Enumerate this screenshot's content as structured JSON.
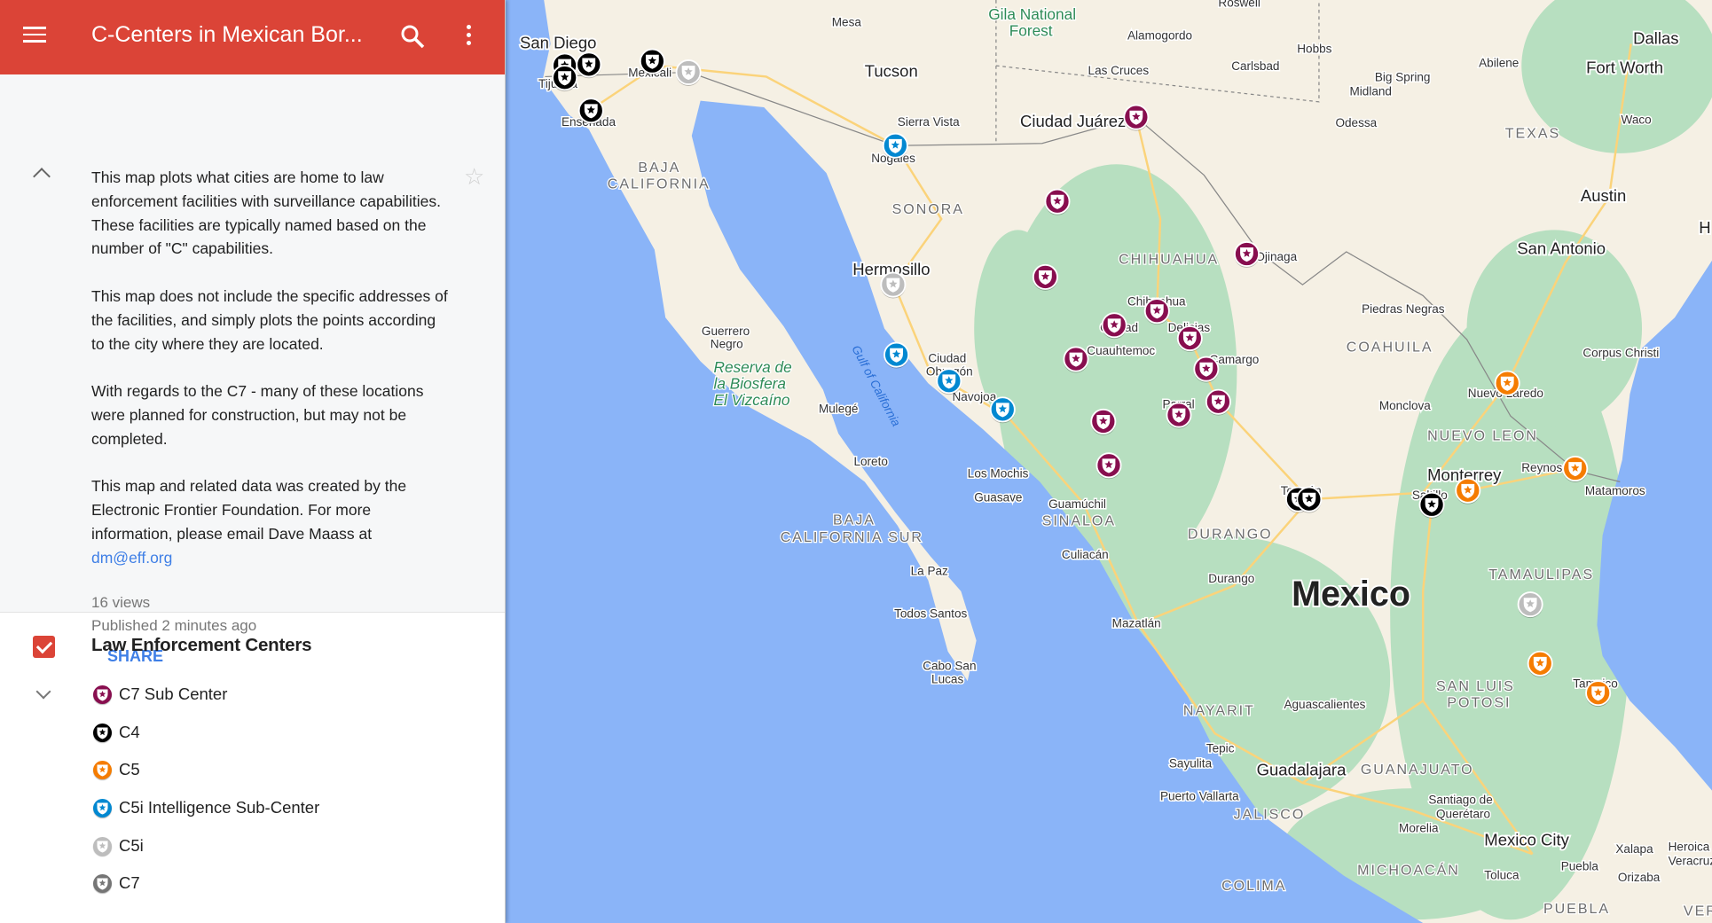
{
  "header": {
    "title": "C-Centers in Mexican Bor...",
    "menu_icon": "hamburger-menu-icon",
    "search_icon": "search-icon",
    "more_icon": "more-vert-icon"
  },
  "description": {
    "paragraphs": [
      "This map plots what cities are home to law enforcement facilities with surveillance capabilities. These facilities are typically named based on the number of \"C\" capabilities.",
      "This map does not include the specific addresses of the facilities, and simply plots the points according to the city where they are located.",
      "With regards to the C7 - many of these locations were planned for construction, but may not be completed.",
      "This map and related data was created by the Electronic Frontier Foundation. For more information, please email Dave Maass at"
    ],
    "email": "dm@eff.org",
    "views": "16 views",
    "published": "Published 2 minutes ago",
    "share_label": "SHARE"
  },
  "layer": {
    "title": "Law Enforcement Centers",
    "checked": true,
    "items": [
      {
        "label": "C7 Sub Center",
        "color": "#880e4f"
      },
      {
        "label": "C4",
        "color": "#000000"
      },
      {
        "label": "C5",
        "color": "#f57c00"
      },
      {
        "label": "C5i Intelligence Sub-Center",
        "color": "#0288d1"
      },
      {
        "label": "C5i",
        "color": "#bdbdbd"
      },
      {
        "label": "C7",
        "color": "#757575"
      }
    ]
  },
  "map": {
    "colors": {
      "water": "#8ab4f8",
      "land": "#f5f0e4",
      "green": "#b7dfc0",
      "road": "#fbd37a"
    },
    "labels": [
      "San Diego",
      "Tijuana",
      "Ensenada",
      "Mexicali",
      "Tucson",
      "Sierra Vista",
      "Nogales",
      "Mesa",
      "Gila National",
      "Forest",
      "Alamogordo",
      "Roswell",
      "Hobbs",
      "Carlsbad",
      "Las Cruces",
      "Ciudad Juárez",
      "Big Spring",
      "Midland",
      "Odessa",
      "Dallas",
      "Fort Worth",
      "Abilene",
      "Waco",
      "Austin",
      "San Antonio",
      "Corpus Christi",
      "Piedras Negras",
      "Ojinaga",
      "Chihuahua",
      "Ciudad",
      "Cuauhtemoc",
      "Delicias",
      "Camargo",
      "Parral",
      "Hermosillo",
      "Guerrero",
      "Negro",
      "Reserva de",
      "la Biosfera",
      "El Vizcaíno",
      "Mulegé",
      "Loreto",
      "Ciudad",
      "Obregón",
      "Navojoa",
      "Los Mochis",
      "Guasave",
      "Guamúchil",
      "Culiacán",
      "Monclova",
      "Nuevo Laredo",
      "Reynosa",
      "Matamoros",
      "Monterrey",
      "Saltillo",
      "Torreón",
      "Durango",
      "Mazatlán",
      "La Paz",
      "Todos Santos",
      "Cabo San",
      "Lucas",
      "Tepic",
      "Sayulita",
      "Puerto Vallarta",
      "Guadalajara",
      "Aguascalientes",
      "Santiago de",
      "Querétaro",
      "Morelia",
      "Mexico City",
      "Toluca",
      "Puebla",
      "Xalapa",
      "Orizaba",
      "Heroica",
      "Veracruz",
      "Tampico",
      "Mexico",
      "BAJA",
      "CALIFORNIA",
      "SONORA",
      "CHIHUAHUA",
      "COAHUILA",
      "NUEVO LEON",
      "TAMAULIPAS",
      "DURANGO",
      "SINALOA",
      "BAJA",
      "CALIFORNIA SUR",
      "NAYARIT",
      "SAN LUIS",
      "POTOSI",
      "GUANAJUATO",
      "JALISCO",
      "MICHOACÁN",
      "COLIMA",
      "PUEBLA",
      "TEXAS",
      "VER",
      "Gulf of California",
      "H"
    ]
  }
}
